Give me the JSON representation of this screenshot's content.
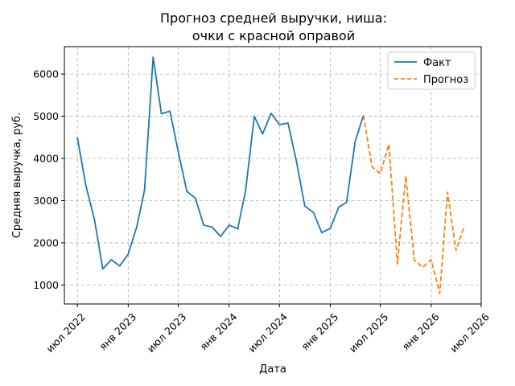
{
  "chart_data": {
    "type": "line",
    "title_lines": [
      "Прогноз средней выручки, ниша:",
      "очки с красной оправой"
    ],
    "xlabel": "Дата",
    "ylabel": "Средняя выручка, руб.",
    "x_ticks": [
      {
        "date": "2022-07-01",
        "label": "июл 2022"
      },
      {
        "date": "2023-01-01",
        "label": "янв 2023"
      },
      {
        "date": "2023-07-01",
        "label": "июл 2023"
      },
      {
        "date": "2024-01-01",
        "label": "янв 2024"
      },
      {
        "date": "2024-07-01",
        "label": "июл 2024"
      },
      {
        "date": "2025-01-01",
        "label": "янв 2025"
      },
      {
        "date": "2025-07-01",
        "label": "июл 2025"
      },
      {
        "date": "2026-01-01",
        "label": "янв 2026"
      },
      {
        "date": "2026-07-01",
        "label": "июл 2026"
      }
    ],
    "y_ticks": [
      1000,
      2000,
      3000,
      4000,
      5000,
      6000
    ],
    "xlim": [
      "2022-05-15",
      "2026-07-01"
    ],
    "ylim": [
      550,
      6650
    ],
    "grid": true,
    "legend_position": "top-right",
    "series": [
      {
        "name": "Факт",
        "color": "#1f77b4",
        "style": "solid",
        "points": [
          [
            "2022-07-01",
            4500
          ],
          [
            "2022-08-01",
            3350
          ],
          [
            "2022-09-01",
            2550
          ],
          [
            "2022-10-01",
            1380
          ],
          [
            "2022-11-01",
            1600
          ],
          [
            "2022-12-01",
            1450
          ],
          [
            "2023-01-01",
            1730
          ],
          [
            "2023-02-01",
            2380
          ],
          [
            "2023-03-01",
            3250
          ],
          [
            "2023-04-01",
            6400
          ],
          [
            "2023-05-01",
            5060
          ],
          [
            "2023-06-01",
            5120
          ],
          [
            "2023-07-01",
            4160
          ],
          [
            "2023-08-01",
            3220
          ],
          [
            "2023-09-01",
            3060
          ],
          [
            "2023-10-01",
            2420
          ],
          [
            "2023-11-01",
            2370
          ],
          [
            "2023-12-01",
            2150
          ],
          [
            "2024-01-01",
            2420
          ],
          [
            "2024-02-01",
            2330
          ],
          [
            "2024-03-01",
            3250
          ],
          [
            "2024-04-01",
            5000
          ],
          [
            "2024-05-01",
            4580
          ],
          [
            "2024-06-01",
            5070
          ],
          [
            "2024-07-01",
            4800
          ],
          [
            "2024-08-01",
            4840
          ],
          [
            "2024-09-01",
            3920
          ],
          [
            "2024-10-01",
            2870
          ],
          [
            "2024-11-01",
            2720
          ],
          [
            "2024-12-01",
            2240
          ],
          [
            "2025-01-01",
            2340
          ],
          [
            "2025-02-01",
            2850
          ],
          [
            "2025-03-01",
            2960
          ],
          [
            "2025-04-01",
            4400
          ],
          [
            "2025-05-01",
            5020
          ]
        ]
      },
      {
        "name": "Прогноз",
        "color": "#ff7f0e",
        "style": "dashed",
        "points": [
          [
            "2025-05-01",
            5020
          ],
          [
            "2025-06-01",
            3800
          ],
          [
            "2025-07-01",
            3640
          ],
          [
            "2025-08-01",
            4340
          ],
          [
            "2025-09-01",
            1500
          ],
          [
            "2025-10-01",
            3580
          ],
          [
            "2025-11-01",
            1590
          ],
          [
            "2025-12-01",
            1420
          ],
          [
            "2026-01-01",
            1600
          ],
          [
            "2026-02-01",
            800
          ],
          [
            "2026-03-01",
            3200
          ],
          [
            "2026-04-01",
            1820
          ],
          [
            "2026-05-01",
            2400
          ]
        ]
      }
    ]
  }
}
